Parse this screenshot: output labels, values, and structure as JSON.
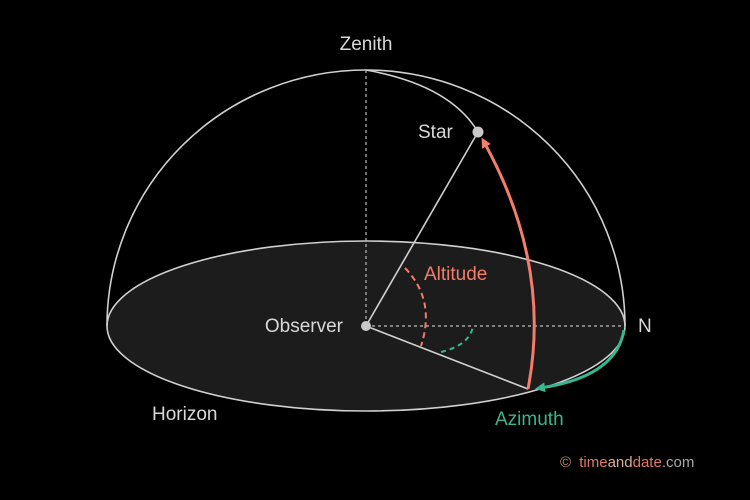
{
  "labels": {
    "zenith": "Zenith",
    "star": "Star",
    "altitude": "Altitude",
    "observer": "Observer",
    "north": "N",
    "horizon": "Horizon",
    "azimuth": "Azimuth"
  },
  "credit": {
    "symbol": "©",
    "brand_a": "time",
    "brand_b": "and",
    "brand_c": "date",
    "tld": ".com"
  },
  "colors": {
    "background": "#000000",
    "lines": "#d0d0d0",
    "altitude": "#f47c6a",
    "azimuth": "#37b68f",
    "horizon_fill": "#1c1c1c"
  }
}
